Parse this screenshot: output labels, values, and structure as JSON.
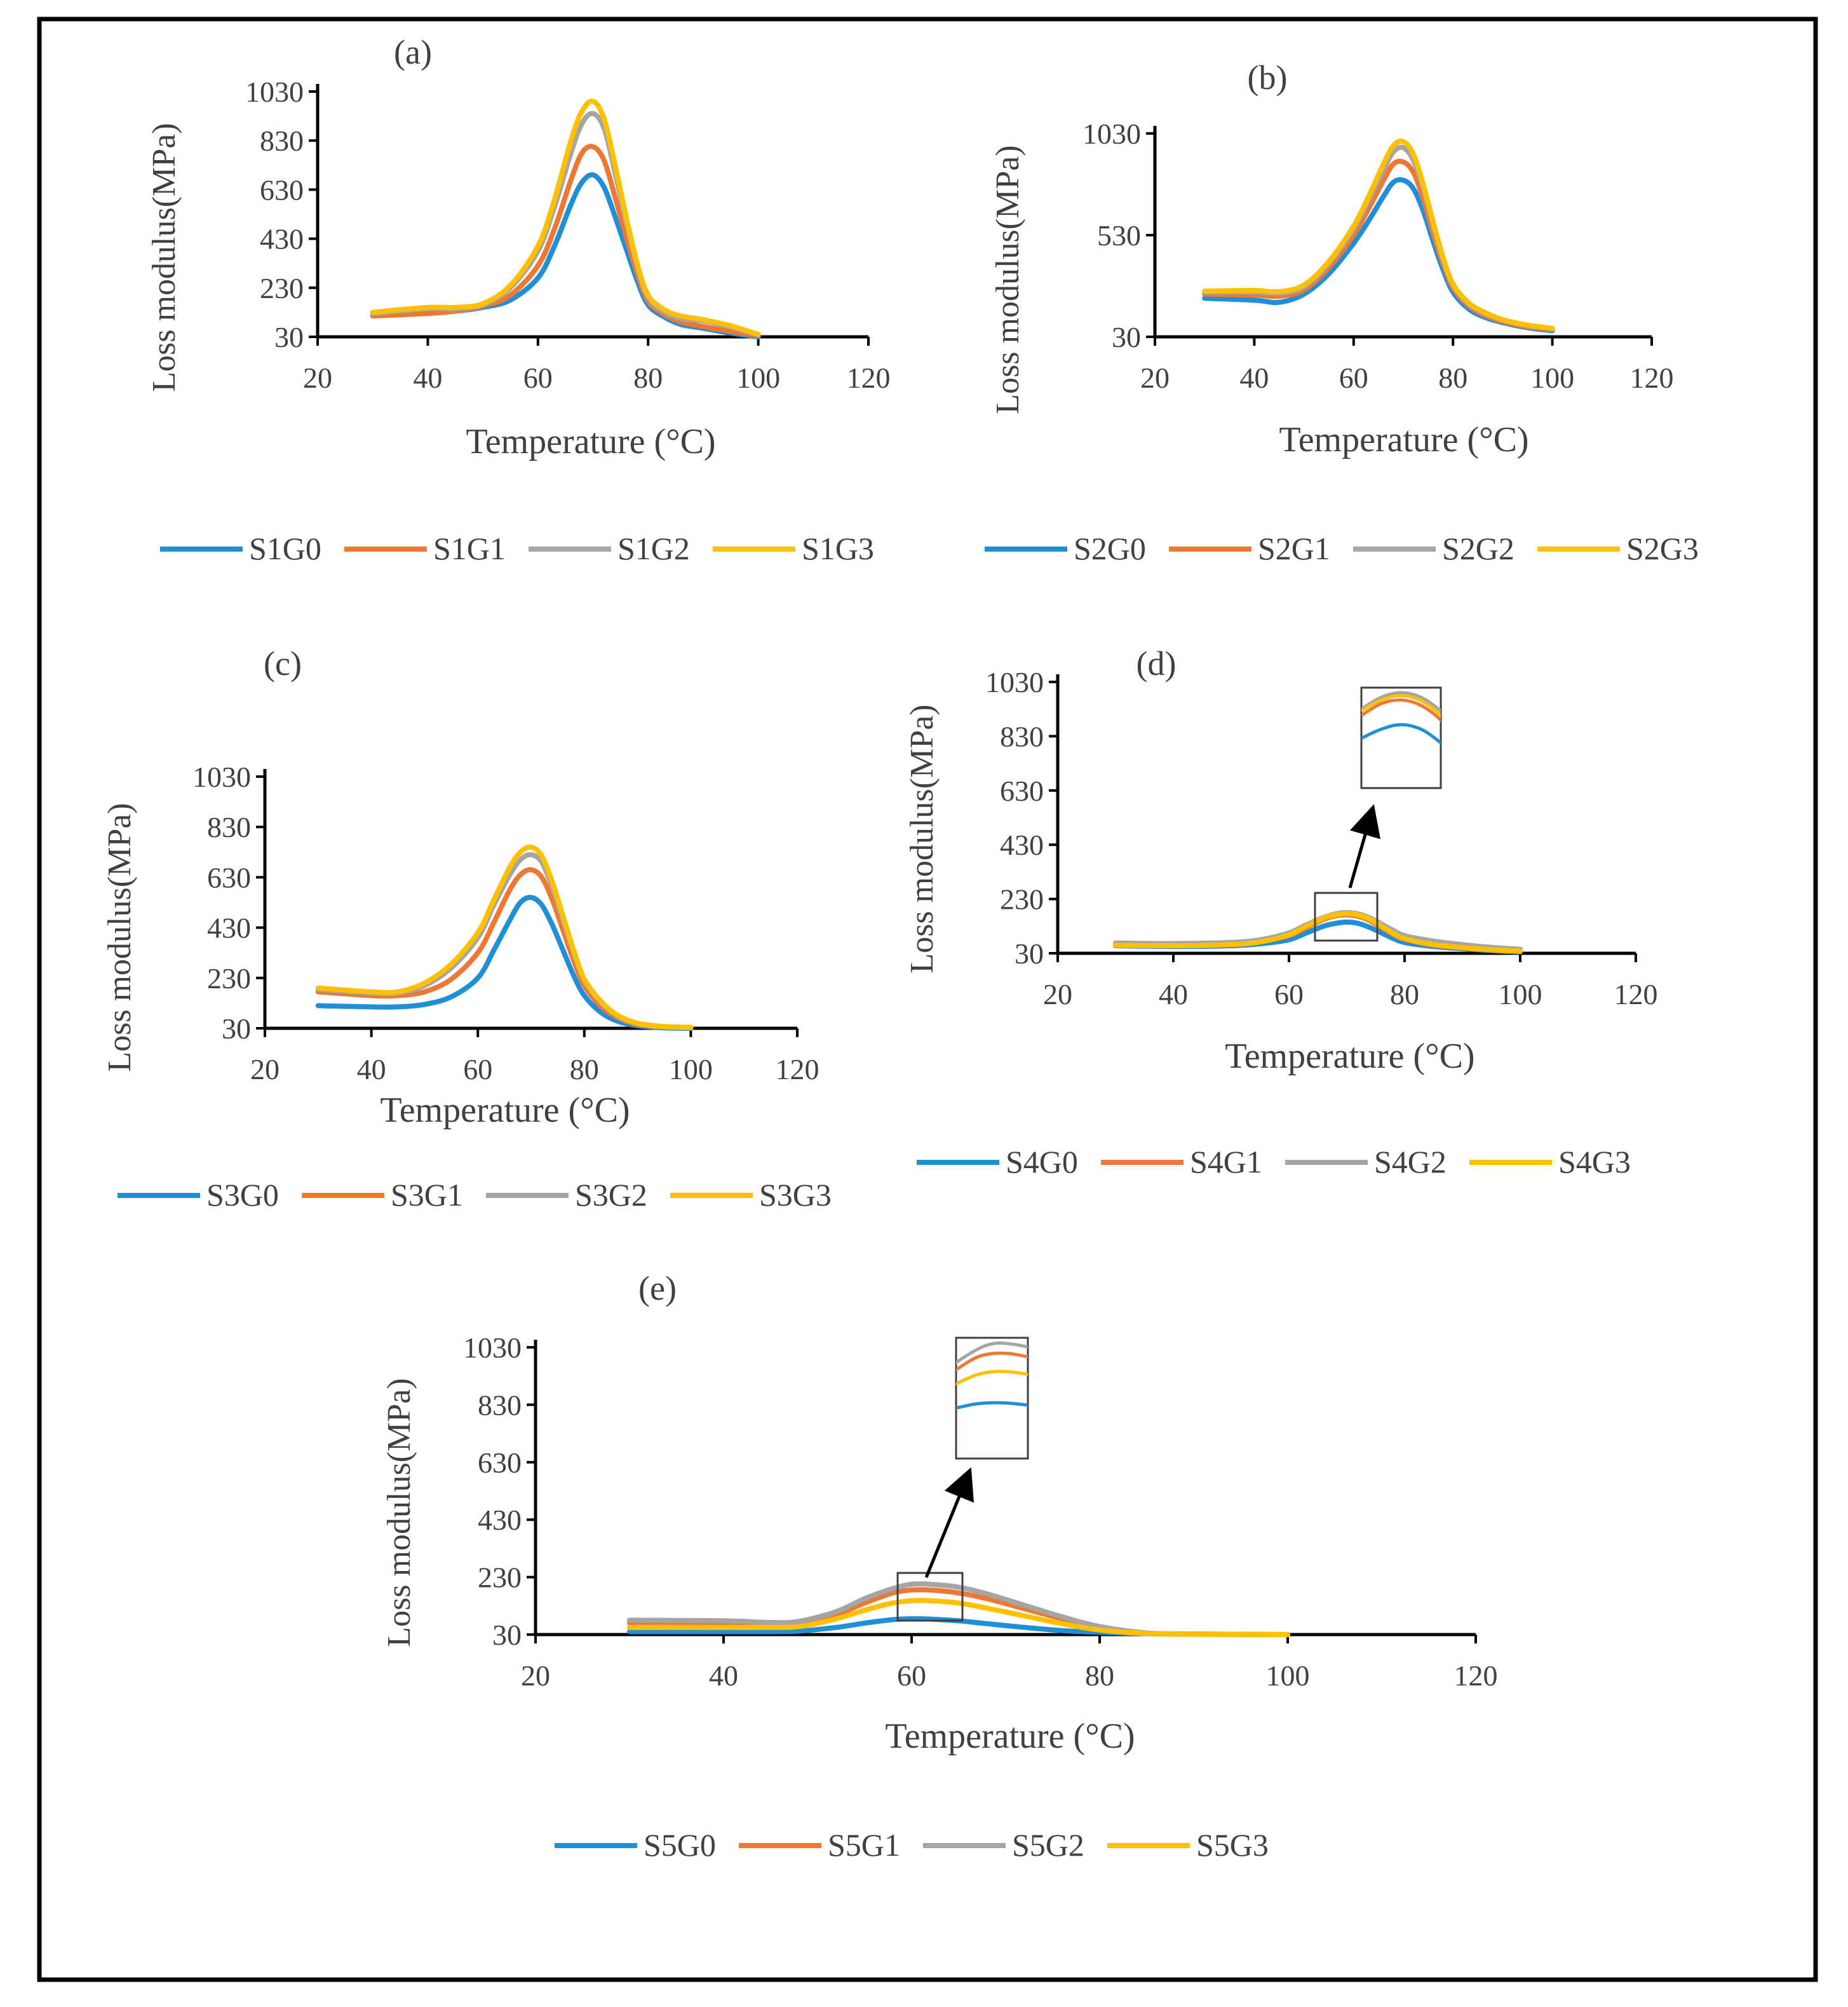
{
  "colors": {
    "G0": "#1f8fd8",
    "G1": "#ee7733",
    "G2": "#a5a5a5",
    "G3": "#ffc000",
    "axis": "#000000",
    "text": "#404040"
  },
  "chart_data": [
    {
      "panel": "(a)",
      "type": "line",
      "xlabel": "Temperature (°C)",
      "ylabel": "Loss modulus(MPa)",
      "xlim": [
        20,
        120
      ],
      "ylim": [
        30,
        1030
      ],
      "xticks": [
        "20",
        "40",
        "60",
        "80",
        "100",
        "120"
      ],
      "yticks": [
        "30",
        "230",
        "430",
        "630",
        "830",
        "1030"
      ],
      "x": [
        30,
        40,
        45,
        50,
        55,
        60,
        63,
        66,
        68,
        70,
        72,
        74,
        76,
        78,
        80,
        83,
        86,
        90,
        95,
        100
      ],
      "series": [
        {
          "name": "S1G0",
          "values": [
            120,
            130,
            135,
            150,
            180,
            270,
            400,
            570,
            660,
            690,
            640,
            520,
            390,
            260,
            160,
            110,
            80,
            65,
            45,
            30
          ]
        },
        {
          "name": "S1G1",
          "values": [
            115,
            125,
            135,
            155,
            200,
            320,
            470,
            670,
            780,
            805,
            750,
            600,
            440,
            290,
            175,
            120,
            90,
            72,
            52,
            35
          ]
        },
        {
          "name": "S1G2",
          "values": [
            125,
            145,
            145,
            160,
            230,
            380,
            560,
            780,
            900,
            940,
            880,
            700,
            500,
            320,
            190,
            130,
            105,
            95,
            70,
            38
          ]
        },
        {
          "name": "S1G3",
          "values": [
            130,
            150,
            150,
            165,
            240,
            400,
            590,
            830,
            950,
            990,
            920,
            730,
            520,
            330,
            200,
            140,
            115,
            100,
            75,
            40
          ]
        }
      ],
      "legend": [
        "S1G0",
        "S1G1",
        "S1G2",
        "S1G3"
      ]
    },
    {
      "panel": "(b)",
      "type": "line",
      "xlabel": "Temperature (°C)",
      "ylabel": "Loss modulus(MPa)",
      "xlim": [
        20,
        120
      ],
      "ylim": [
        30,
        1030
      ],
      "xticks": [
        "20",
        "40",
        "60",
        "80",
        "100",
        "120"
      ],
      "yticks": [
        "30",
        "530",
        "1030"
      ],
      "x": [
        30,
        40,
        45,
        50,
        55,
        60,
        63,
        66,
        68,
        70,
        72,
        74,
        76,
        78,
        80,
        83,
        86,
        90,
        95,
        100
      ],
      "series": [
        {
          "name": "S2G0",
          "values": [
            220,
            210,
            200,
            240,
            340,
            490,
            600,
            720,
            790,
            800,
            760,
            650,
            500,
            360,
            250,
            170,
            130,
            100,
            75,
            60
          ]
        },
        {
          "name": "S2G1",
          "values": [
            240,
            235,
            230,
            260,
            370,
            530,
            660,
            800,
            880,
            890,
            840,
            710,
            540,
            390,
            270,
            185,
            140,
            105,
            80,
            65
          ]
        },
        {
          "name": "S2G2",
          "values": [
            250,
            250,
            245,
            275,
            390,
            560,
            700,
            850,
            940,
            960,
            900,
            760,
            580,
            410,
            285,
            195,
            150,
            112,
            85,
            70
          ]
        },
        {
          "name": "S2G3",
          "values": [
            255,
            258,
            252,
            285,
            400,
            575,
            720,
            880,
            970,
            990,
            930,
            780,
            595,
            420,
            290,
            200,
            155,
            115,
            88,
            72
          ]
        }
      ],
      "legend": [
        "S2G0",
        "S2G1",
        "S2G2",
        "S2G3"
      ]
    },
    {
      "panel": "(c)",
      "type": "line",
      "xlabel": "Temperature (°C)",
      "ylabel": "Loss modulus(MPa)",
      "xlim": [
        20,
        120
      ],
      "ylim": [
        30,
        1030
      ],
      "xticks": [
        "20",
        "40",
        "60",
        "80",
        "100",
        "120"
      ],
      "yticks": [
        "30",
        "230",
        "430",
        "630",
        "830",
        "1030"
      ],
      "x": [
        30,
        40,
        45,
        50,
        55,
        60,
        63,
        66,
        68,
        70,
        72,
        74,
        76,
        78,
        80,
        83,
        86,
        90,
        95,
        100
      ],
      "series": [
        {
          "name": "S3G0",
          "values": [
            120,
            115,
            115,
            125,
            155,
            230,
            340,
            460,
            530,
            550,
            520,
            440,
            340,
            240,
            160,
            95,
            60,
            40,
            32,
            30
          ]
        },
        {
          "name": "S3G1",
          "values": [
            175,
            160,
            160,
            175,
            225,
            330,
            450,
            580,
            640,
            660,
            630,
            540,
            420,
            300,
            200,
            120,
            75,
            45,
            35,
            32
          ]
        },
        {
          "name": "S3G2",
          "values": [
            185,
            170,
            170,
            200,
            270,
            390,
            520,
            640,
            700,
            720,
            690,
            590,
            460,
            330,
            220,
            135,
            82,
            48,
            36,
            33
          ]
        },
        {
          "name": "S3G3",
          "values": [
            190,
            175,
            175,
            210,
            285,
            410,
            540,
            670,
            730,
            750,
            715,
            610,
            475,
            340,
            225,
            140,
            85,
            50,
            37,
            34
          ]
        }
      ],
      "legend": [
        "S3G0",
        "S3G1",
        "S3G2",
        "S3G3"
      ]
    },
    {
      "panel": "(d)",
      "type": "line",
      "xlabel": "Temperature (°C)",
      "ylabel": "Loss modulus(MPa)",
      "xlim": [
        20,
        120
      ],
      "ylim": [
        30,
        1030
      ],
      "xticks": [
        "20",
        "40",
        "60",
        "80",
        "100",
        "120"
      ],
      "yticks": [
        "30",
        "230",
        "430",
        "630",
        "830",
        "1030"
      ],
      "x": [
        30,
        40,
        50,
        55,
        60,
        63,
        66,
        68,
        70,
        72,
        74,
        76,
        78,
        80,
        85,
        90,
        95,
        100
      ],
      "series": [
        {
          "name": "S4G0",
          "values": [
            58,
            55,
            58,
            65,
            80,
            105,
            130,
            140,
            145,
            140,
            125,
            105,
            85,
            70,
            55,
            47,
            40,
            35
          ]
        },
        {
          "name": "S4G1",
          "values": [
            62,
            60,
            64,
            74,
            95,
            125,
            155,
            168,
            172,
            166,
            150,
            125,
            100,
            82,
            60,
            50,
            42,
            38
          ]
        },
        {
          "name": "S4G2",
          "values": [
            68,
            66,
            70,
            80,
            105,
            135,
            162,
            175,
            180,
            175,
            160,
            138,
            115,
            95,
            75,
            62,
            52,
            45
          ]
        },
        {
          "name": "S4G3",
          "values": [
            60,
            58,
            62,
            72,
            98,
            130,
            160,
            172,
            177,
            171,
            155,
            130,
            104,
            84,
            62,
            51,
            43,
            38
          ]
        }
      ],
      "legend": [
        "S4G0",
        "S4G1",
        "S4G2",
        "S4G3"
      ]
    },
    {
      "panel": "(e)",
      "type": "line",
      "xlabel": "Temperature (°C)",
      "ylabel": "Loss modulus(MPa)",
      "xlim": [
        20,
        120
      ],
      "ylim": [
        30,
        1030
      ],
      "xticks": [
        "20",
        "40",
        "60",
        "80",
        "100",
        "120"
      ],
      "yticks": [
        "30",
        "230",
        "430",
        "630",
        "830",
        "1030"
      ],
      "x": [
        30,
        40,
        45,
        48,
        52,
        55,
        58,
        60,
        62,
        65,
        68,
        72,
        76,
        80,
        85,
        90,
        100
      ],
      "series": [
        {
          "name": "S5G0",
          "values": [
            40,
            40,
            40,
            42,
            55,
            70,
            82,
            85,
            84,
            78,
            68,
            55,
            44,
            38,
            33,
            31,
            30
          ]
        },
        {
          "name": "S5G1",
          "values": [
            70,
            68,
            65,
            68,
            100,
            140,
            175,
            185,
            185,
            175,
            155,
            120,
            85,
            55,
            35,
            32,
            30
          ]
        },
        {
          "name": "S5G2",
          "values": [
            80,
            78,
            72,
            76,
            110,
            155,
            190,
            205,
            205,
            195,
            172,
            132,
            92,
            58,
            36,
            32,
            30
          ]
        },
        {
          "name": "S5G3",
          "values": [
            55,
            55,
            55,
            58,
            85,
            115,
            140,
            148,
            148,
            140,
            122,
            95,
            68,
            46,
            34,
            31,
            30
          ]
        }
      ],
      "legend": [
        "S5G0",
        "S5G1",
        "S5G2",
        "S5G3"
      ]
    }
  ]
}
